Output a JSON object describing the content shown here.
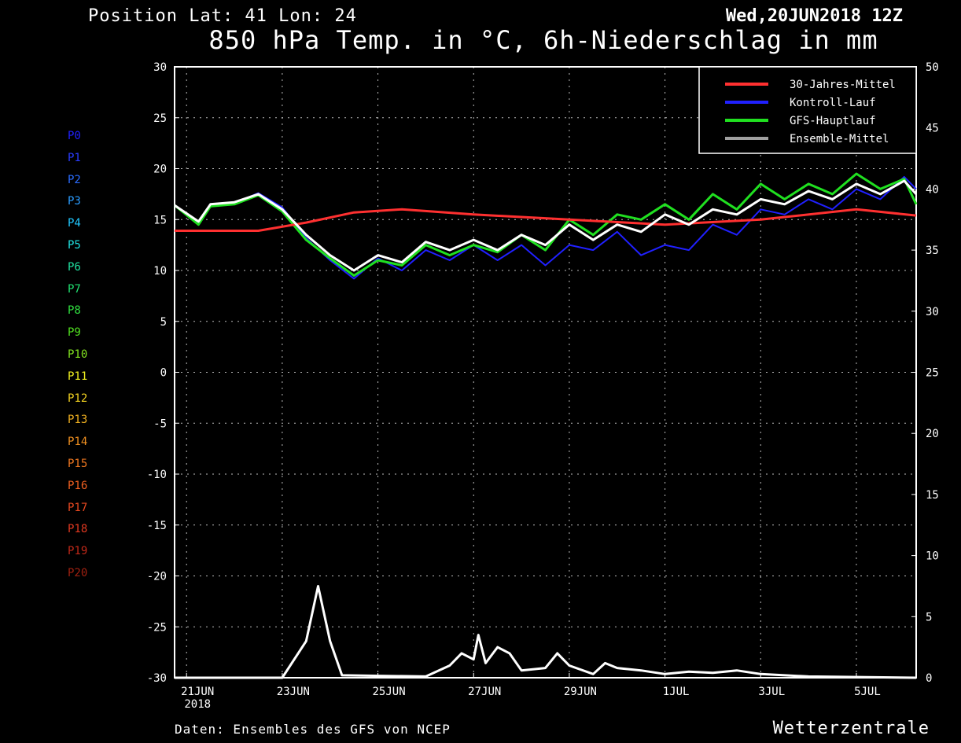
{
  "header": {
    "position": "Position   Lat: 41 Lon: 24",
    "date": "Wed,20JUN2018 12Z",
    "title": "850 hPa Temp. in °C, 6h-Niederschlag in mm"
  },
  "footer": {
    "source": "Daten: Ensembles des GFS von NCEP",
    "brand": "Wetterzentrale"
  },
  "members": [
    {
      "label": "P0",
      "color": "#2020ff"
    },
    {
      "label": "P1",
      "color": "#2a3cff"
    },
    {
      "label": "P2",
      "color": "#2a6cff"
    },
    {
      "label": "P3",
      "color": "#2a9cff"
    },
    {
      "label": "P4",
      "color": "#20c8ff"
    },
    {
      "label": "P5",
      "color": "#20e0e0"
    },
    {
      "label": "P6",
      "color": "#20e0a0"
    },
    {
      "label": "P7",
      "color": "#20e070"
    },
    {
      "label": "P8",
      "color": "#30e040"
    },
    {
      "label": "P9",
      "color": "#50e020"
    },
    {
      "label": "P10",
      "color": "#80e020"
    },
    {
      "label": "P11",
      "color": "#f0f020"
    },
    {
      "label": "P12",
      "color": "#f0d020"
    },
    {
      "label": "P13",
      "color": "#f0b020"
    },
    {
      "label": "P14",
      "color": "#f09020"
    },
    {
      "label": "P15",
      "color": "#f07820"
    },
    {
      "label": "P16",
      "color": "#f06020"
    },
    {
      "label": "P17",
      "color": "#e84820"
    },
    {
      "label": "P18",
      "color": "#e03820"
    },
    {
      "label": "P19",
      "color": "#c02818"
    },
    {
      "label": "P20",
      "color": "#a02010"
    }
  ],
  "chart_data": {
    "type": "line",
    "title": "850 hPa Temp. in °C, 6h-Niederschlag in mm",
    "x_unit": "days after 21JUN 00Z",
    "xlim": [
      -0.25,
      15.25
    ],
    "x_tick_labels": [
      "21JUN\n2018",
      "23JUN",
      "25JUN",
      "27JUN",
      "29JUN",
      "1JUL",
      "3JUL",
      "5JUL"
    ],
    "x_tick_values": [
      0,
      2,
      4,
      6,
      8,
      10,
      12,
      14
    ],
    "ylim_left": [
      -30,
      30
    ],
    "y_left_ticks": [
      30,
      25,
      20,
      15,
      10,
      5,
      0,
      -5,
      -10,
      -15,
      -20,
      -25,
      -30
    ],
    "ylim_right": [
      0,
      50
    ],
    "y_right_ticks": [
      50,
      45,
      40,
      35,
      30,
      25,
      20,
      15,
      10,
      5,
      0
    ],
    "grid": true,
    "legend_position": "top-right",
    "legend": [
      {
        "name": "30-Jahres-Mittel",
        "color": "#ff3030"
      },
      {
        "name": "Kontroll-Lauf",
        "color": "#2020ff"
      },
      {
        "name": "GFS-Hauptlauf",
        "color": "#20e020"
      },
      {
        "name": "Ensemble-Mittel",
        "color": "#a0a0a0"
      }
    ],
    "climatology_temp": [
      [
        -0.25,
        13.9
      ],
      [
        1.5,
        13.9
      ],
      [
        2.5,
        14.7
      ],
      [
        3.5,
        15.7
      ],
      [
        4.5,
        16.0
      ],
      [
        6.0,
        15.5
      ],
      [
        8.0,
        15.0
      ],
      [
        10.0,
        14.5
      ],
      [
        12.0,
        15.0
      ],
      [
        14.0,
        16.0
      ],
      [
        15.25,
        15.4
      ]
    ],
    "ensemble_mean_temp": [
      [
        -0.25,
        16.4
      ],
      [
        0.25,
        14.8
      ],
      [
        0.5,
        16.5
      ],
      [
        1.0,
        16.7
      ],
      [
        1.5,
        17.5
      ],
      [
        2.0,
        16.0
      ],
      [
        2.5,
        13.5
      ],
      [
        3.0,
        11.5
      ],
      [
        3.5,
        10.0
      ],
      [
        4.0,
        11.5
      ],
      [
        4.5,
        10.8
      ],
      [
        5.0,
        12.8
      ],
      [
        5.5,
        12.0
      ],
      [
        6.0,
        13.0
      ],
      [
        6.5,
        12.0
      ],
      [
        7.0,
        13.5
      ],
      [
        7.5,
        12.5
      ],
      [
        8.0,
        14.5
      ],
      [
        8.5,
        13.0
      ],
      [
        9.0,
        14.5
      ],
      [
        9.5,
        13.8
      ],
      [
        10.0,
        15.5
      ],
      [
        10.5,
        14.5
      ],
      [
        11.0,
        16.0
      ],
      [
        11.5,
        15.5
      ],
      [
        12.0,
        17.0
      ],
      [
        12.5,
        16.5
      ],
      [
        13.0,
        17.8
      ],
      [
        13.5,
        17.0
      ],
      [
        14.0,
        18.5
      ],
      [
        14.5,
        17.5
      ],
      [
        15.0,
        18.8
      ],
      [
        15.25,
        17.5
      ]
    ],
    "control_temp": [
      [
        -0.25,
        16.4
      ],
      [
        0.25,
        14.6
      ],
      [
        0.5,
        16.4
      ],
      [
        1.0,
        16.6
      ],
      [
        1.5,
        17.6
      ],
      [
        2.0,
        16.2
      ],
      [
        2.5,
        13.2
      ],
      [
        3.0,
        11.0
      ],
      [
        3.5,
        9.2
      ],
      [
        4.0,
        11.2
      ],
      [
        4.5,
        10.0
      ],
      [
        5.0,
        12.0
      ],
      [
        5.5,
        11.0
      ],
      [
        6.0,
        12.5
      ],
      [
        6.5,
        11.0
      ],
      [
        7.0,
        12.5
      ],
      [
        7.5,
        10.5
      ],
      [
        8.0,
        12.5
      ],
      [
        8.5,
        12.0
      ],
      [
        9.0,
        13.8
      ],
      [
        9.5,
        11.5
      ],
      [
        10.0,
        12.5
      ],
      [
        10.5,
        12.0
      ],
      [
        11.0,
        14.5
      ],
      [
        11.5,
        13.5
      ],
      [
        12.0,
        16.0
      ],
      [
        12.5,
        15.5
      ],
      [
        13.0,
        17.0
      ],
      [
        13.5,
        16.0
      ],
      [
        14.0,
        18.0
      ],
      [
        14.5,
        17.0
      ],
      [
        15.0,
        19.2
      ],
      [
        15.25,
        18.0
      ]
    ],
    "gfs_main_temp": [
      [
        -0.25,
        16.4
      ],
      [
        0.25,
        14.5
      ],
      [
        0.5,
        16.3
      ],
      [
        1.0,
        16.5
      ],
      [
        1.5,
        17.4
      ],
      [
        2.0,
        15.8
      ],
      [
        2.5,
        13.0
      ],
      [
        3.0,
        11.2
      ],
      [
        3.5,
        9.5
      ],
      [
        4.0,
        11.0
      ],
      [
        4.5,
        10.5
      ],
      [
        5.0,
        12.5
      ],
      [
        5.5,
        11.5
      ],
      [
        6.0,
        12.5
      ],
      [
        6.5,
        11.8
      ],
      [
        7.0,
        13.5
      ],
      [
        7.5,
        12.0
      ],
      [
        8.0,
        15.0
      ],
      [
        8.5,
        13.5
      ],
      [
        9.0,
        15.5
      ],
      [
        9.5,
        15.0
      ],
      [
        10.0,
        16.5
      ],
      [
        10.5,
        15.0
      ],
      [
        11.0,
        17.5
      ],
      [
        11.5,
        16.0
      ],
      [
        12.0,
        18.5
      ],
      [
        12.5,
        17.0
      ],
      [
        13.0,
        18.5
      ],
      [
        13.5,
        17.5
      ],
      [
        14.0,
        19.5
      ],
      [
        14.5,
        18.0
      ],
      [
        15.0,
        19.0
      ],
      [
        15.25,
        16.5
      ]
    ],
    "ensemble_mean_precip": [
      [
        -0.25,
        0
      ],
      [
        2.0,
        0
      ],
      [
        2.5,
        3.0
      ],
      [
        2.75,
        7.5
      ],
      [
        3.0,
        3.0
      ],
      [
        3.25,
        0.2
      ],
      [
        5.0,
        0.1
      ],
      [
        5.5,
        1.0
      ],
      [
        5.75,
        2.0
      ],
      [
        6.0,
        1.5
      ],
      [
        6.1,
        3.5
      ],
      [
        6.25,
        1.2
      ],
      [
        6.5,
        2.5
      ],
      [
        6.75,
        2.0
      ],
      [
        7.0,
        0.6
      ],
      [
        7.5,
        0.8
      ],
      [
        7.75,
        2.0
      ],
      [
        8.0,
        1.0
      ],
      [
        8.5,
        0.3
      ],
      [
        8.75,
        1.2
      ],
      [
        9.0,
        0.8
      ],
      [
        9.5,
        0.6
      ],
      [
        10.0,
        0.3
      ],
      [
        10.5,
        0.5
      ],
      [
        11.0,
        0.4
      ],
      [
        11.5,
        0.6
      ],
      [
        12.0,
        0.3
      ],
      [
        12.5,
        0.2
      ],
      [
        13.0,
        0.1
      ],
      [
        15.25,
        0
      ]
    ]
  }
}
